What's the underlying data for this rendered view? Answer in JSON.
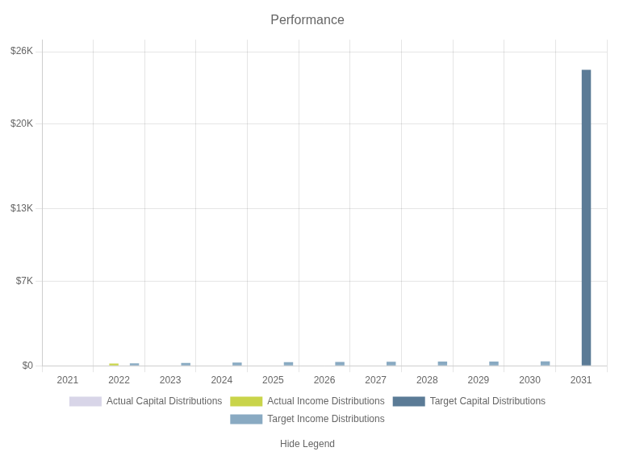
{
  "chart_data": {
    "type": "bar",
    "title": "Performance",
    "annotations": [
      "Hide Legend"
    ],
    "categories": [
      "2021",
      "2022",
      "2023",
      "2024",
      "2025",
      "2026",
      "2027",
      "2028",
      "2029",
      "2030",
      "2031"
    ],
    "series": [
      {
        "name": "Actual Capital Distributions",
        "color": "#d8d5e8",
        "values": [
          0,
          0,
          0,
          0,
          0,
          0,
          0,
          0,
          0,
          0,
          0
        ]
      },
      {
        "name": "Actual Income Distributions",
        "color": "#c9d44a",
        "values": [
          0,
          180,
          0,
          0,
          0,
          0,
          0,
          0,
          0,
          0,
          0
        ]
      },
      {
        "name": "Target Capital Distributions",
        "color": "#5b7b96",
        "values": [
          0,
          0,
          0,
          0,
          0,
          0,
          0,
          0,
          0,
          0,
          24500
        ]
      },
      {
        "name": "Target Income Distributions",
        "color": "#89aac2",
        "values": [
          0,
          200,
          230,
          260,
          290,
          310,
          330,
          340,
          350,
          370,
          0
        ]
      }
    ],
    "ylim": [
      0,
      27000
    ],
    "yticks": [
      {
        "value": 0,
        "label": "$0"
      },
      {
        "value": 7000,
        "label": "$7K"
      },
      {
        "value": 13000,
        "label": "$13K"
      },
      {
        "value": 20000,
        "label": "$20K"
      },
      {
        "value": 26000,
        "label": "$26K"
      }
    ],
    "grid": true,
    "legend": "bottom"
  }
}
